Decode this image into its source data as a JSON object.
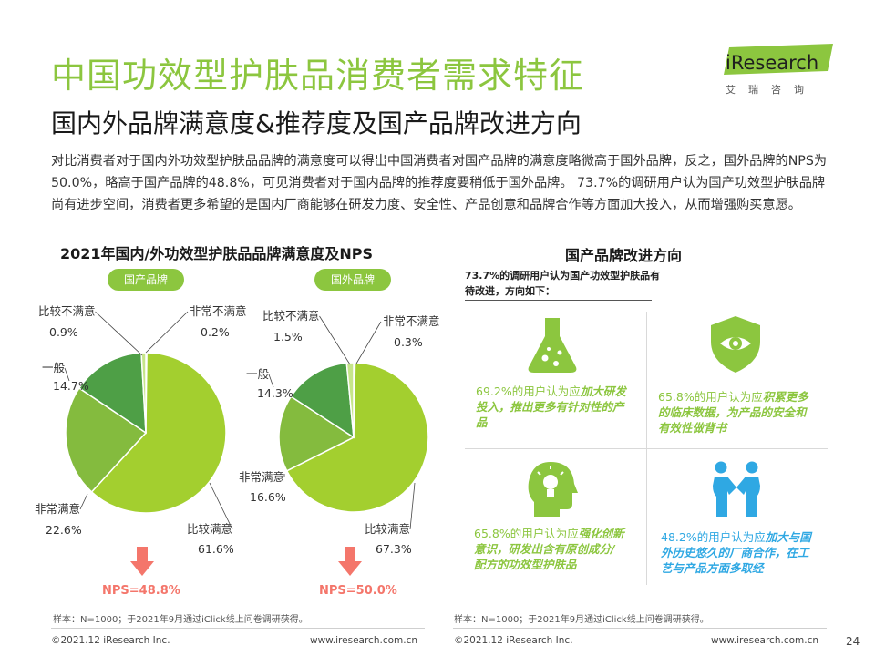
{
  "header": {
    "title": "中国功效型护肤品消费者需求特征",
    "subtitle": "国内外品牌满意度&推荐度及国产品牌改进方向",
    "intro": "对比消费者对于国内外功效型护肤品品牌的满意度可以得出中国消费者对国产品牌的满意度略微高于国外品牌，反之，国外品牌的NPS为50.0%，略高于国产品牌的48.8%，可见消费者对于国内品牌的推荐度要稍低于国外品牌。 73.7%的调研用户认为国产功效型护肤品牌尚有进步空间，消费者更多希望的是国内厂商能够在研发力度、安全性、产品创意和品牌合作等方面加大投入，从而增强购买意愿。"
  },
  "logo": {
    "word": "iResearch",
    "cn": "艾瑞咨询"
  },
  "left": {
    "section_title": "2021年国内/外功效型护肤品品牌满意度及NPS",
    "note": "样本：N=1000；于2021年9月通过iClick线上问卷调研获得。"
  },
  "right": {
    "section_title": "国产品牌改进方向",
    "intro": "73.7%的调研用户认为国产功效型护肤品有待改进，方向如下：",
    "note": "样本：N=1000；于2021年9月通过iClick线上问卷调研获得。",
    "cells": [
      {
        "lead": "69.2%的用户认为应",
        "em": "加大研发投入，推出更多有针对性的产品",
        "icon": "flask-icon",
        "color": "#8cc63f"
      },
      {
        "lead": "65.8%的用户认为应",
        "em": "积累更多的临床数据，为产品的安全和有效性做背书",
        "icon": "shield-eye-icon",
        "color": "#8cc63f"
      },
      {
        "lead": "65.8%的用户认为应",
        "em": "强化创新意识，研发出含有原创成分/配方的功效型护肤品",
        "icon": "head-bulb-icon",
        "color": "#8cc63f"
      },
      {
        "lead": "48.2%的用户认为应",
        "em": "加大与国外历史悠久的厂商合作，在工艺与产品方面多取经",
        "icon": "handshake-icon",
        "color": "#2fa8e3"
      }
    ]
  },
  "chart_data": [
    {
      "type": "pie",
      "title": "国产品牌",
      "categories": [
        "比较满意",
        "非常满意",
        "一般",
        "比较不满意",
        "非常不满意"
      ],
      "values": [
        61.6,
        22.6,
        14.7,
        0.9,
        0.2
      ],
      "colors": [
        "#a3cf2f",
        "#84bb3e",
        "#4e9f46",
        "#c6e58a",
        "#1f9ad6"
      ],
      "labels": [
        "61.6%",
        "22.6%",
        "14.7%",
        "0.9%",
        "0.2%"
      ],
      "nps": "NPS=48.8%"
    },
    {
      "type": "pie",
      "title": "国外品牌",
      "categories": [
        "比较满意",
        "非常满意",
        "一般",
        "比较不满意",
        "非常不满意"
      ],
      "values": [
        67.3,
        16.6,
        14.3,
        1.5,
        0.3
      ],
      "colors": [
        "#a3cf2f",
        "#84bb3e",
        "#4e9f46",
        "#c6e58a",
        "#1f9ad6"
      ],
      "labels": [
        "67.3%",
        "16.6%",
        "14.3%",
        "1.5%",
        "0.3%"
      ],
      "nps": "NPS=50.0%"
    }
  ],
  "footer": {
    "copyright": "©2021.12 iResearch Inc.",
    "url": "www.iresearch.com.cn",
    "page": "24"
  }
}
